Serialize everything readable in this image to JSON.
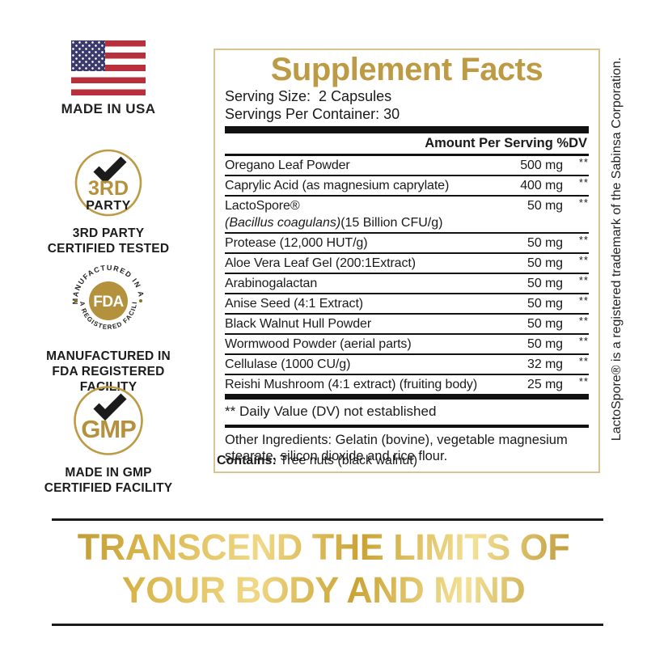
{
  "made_in_usa": {
    "label": "MADE IN USA"
  },
  "badges": {
    "third_party": {
      "word1": "3RD",
      "word2": "PARTY",
      "caption1": "3RD PARTY",
      "caption2": "CERTIFIED TESTED"
    },
    "fda": {
      "arc_top": "MANUFACTURED IN AN",
      "arc_bottom": "FDA REGISTERED FACILITY",
      "center": "FDA",
      "caption1": "MANUFACTURED IN",
      "caption2": "FDA REGISTERED FACILITY"
    },
    "gmp": {
      "center": "GMP",
      "caption1": "MADE IN GMP",
      "caption2": "CERTIFIED FACILITY"
    }
  },
  "panel": {
    "title": "Supplement Facts",
    "serving_size": "Serving Size:  2 Capsules",
    "servings_per_container": "Servings Per Container: 30",
    "column_header": "Amount Per Serving %DV",
    "rows": [
      {
        "name": "Oregano Leaf Powder",
        "amount": "500 mg",
        "dv": "**"
      },
      {
        "name": "Caprylic Acid (as magnesium caprylate)",
        "amount": "400 mg",
        "dv": "**"
      },
      {
        "name": "LactoSpore®",
        "amount": "50 mg",
        "dv": "**",
        "sub_italic": "(Bacillus coagulans)",
        "sub_rest": "(15 Billion CFU/g)"
      },
      {
        "name": "Protease (12,000 HUT/g)",
        "amount": "50 mg",
        "dv": "**"
      },
      {
        "name": "Aloe Vera Leaf Gel (200:1Extract)",
        "amount": "50 mg",
        "dv": "**"
      },
      {
        "name": "Arabinogalactan",
        "amount": "50 mg",
        "dv": "**"
      },
      {
        "name": "Anise Seed (4:1 Extract)",
        "amount": "50 mg",
        "dv": "**"
      },
      {
        "name": "Black Walnut Hull Powder",
        "amount": "50 mg",
        "dv": "**"
      },
      {
        "name": "Wormwood Powder (aerial parts)",
        "amount": "50 mg",
        "dv": "**"
      },
      {
        "name": "Cellulase (1000 CU/g)",
        "amount": "32 mg",
        "dv": "**"
      },
      {
        "name": "Reishi Mushroom (4:1 extract) (fruiting body)",
        "amount": "25 mg",
        "dv": "**"
      }
    ],
    "footnote": "** Daily Value (DV) not established",
    "other_ingredients": "Other Ingredients: Gelatin (bovine), vegetable magnesium stearate, silicon dioxide and rice flour."
  },
  "contains": {
    "label": "Contains:",
    "value": " Tree nuts (black walnut)"
  },
  "trademark_note": "LactoSpore® is a registered trademark of the Sabinsa Corporation.",
  "tagline": {
    "line1": "TRANSCEND THE LIMITS OF",
    "line2": "YOUR BODY AND MIND"
  },
  "colors": {
    "gold_title": "#BD9A44",
    "badge_gold": "#B4913C",
    "panel_border": "#D8C48E",
    "flag_red": "#B8303C",
    "flag_blue": "#3B3A6B",
    "text": "#1A1A1A",
    "tagline_gradient_dark": "#A3801F",
    "tagline_gradient_light": "#F3E195"
  }
}
